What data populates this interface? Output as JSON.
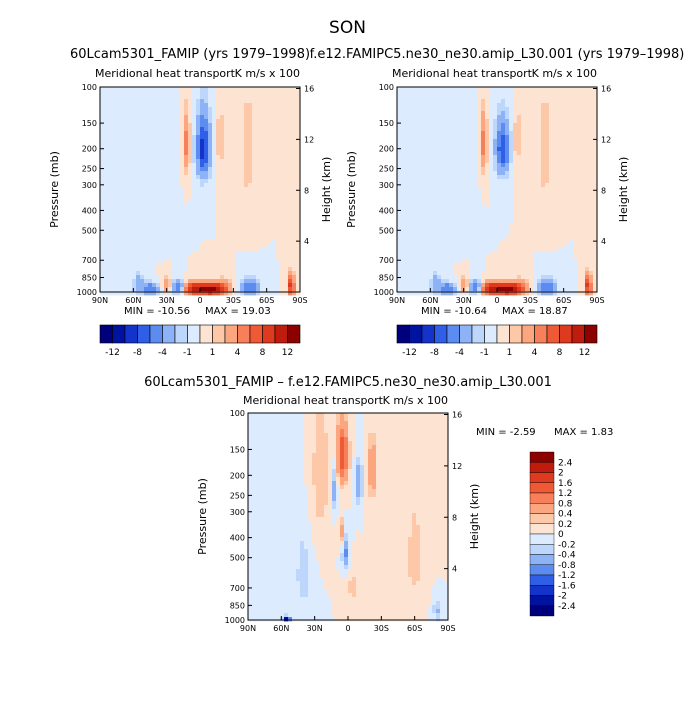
{
  "page": {
    "title": "SON"
  },
  "colors": {
    "neg": [
      "#00007d",
      "#0012a0",
      "#1433ca",
      "#2e5fe6",
      "#5c8cf0",
      "#8eb2f6",
      "#bdd6fb",
      "#dcebfd"
    ],
    "pos": [
      "#fde4d2",
      "#fcc8a8",
      "#fba67f",
      "#f7805a",
      "#ef5a36",
      "#de3a1f",
      "#c01c0e",
      "#8c0000"
    ]
  },
  "chart_data": [
    {
      "type": "heatmap",
      "id": "p1",
      "header": "60Lcam5301_FAMIP (yrs 1979–1998)",
      "title": "Meridional heat transport",
      "units": "K m/s x 100",
      "ylabel": "Pressure (mb)",
      "y2label": "Height (km)",
      "x_ticks": [
        "90N",
        "60N",
        "30N",
        "0",
        "30S",
        "60S",
        "90S"
      ],
      "y_ticks": [
        100,
        150,
        200,
        250,
        300,
        400,
        500,
        700,
        850,
        1000
      ],
      "y2_ticks": [
        16,
        12,
        8,
        4
      ],
      "min_label": "MIN = -10.56",
      "max_label": "MAX = 19.03",
      "ylim": [
        1000,
        100
      ],
      "x_range": [
        90,
        -90
      ],
      "features": [
        {
          "lat": 45,
          "p": 960,
          "v": -6,
          "w": 8,
          "h": 60
        },
        {
          "lat": 55,
          "p": 900,
          "v": -3,
          "w": 5,
          "h": 90
        },
        {
          "lat": 30,
          "p": 920,
          "v": 4,
          "w": 4,
          "h": 70
        },
        {
          "lat": 18,
          "p": 950,
          "v": -7,
          "w": 7,
          "h": 70
        },
        {
          "lat": 8,
          "p": 960,
          "v": 10,
          "w": 9,
          "h": 70
        },
        {
          "lat": -8,
          "p": 965,
          "v": 14,
          "w": 10,
          "h": 60
        },
        {
          "lat": -20,
          "p": 950,
          "v": 6,
          "w": 8,
          "h": 80
        },
        {
          "lat": -45,
          "p": 940,
          "v": -6,
          "w": 8,
          "h": 80
        },
        {
          "lat": -82,
          "p": 930,
          "v": 10,
          "w": 3,
          "h": 110
        },
        {
          "lat": 12,
          "p": 190,
          "v": 5,
          "w": 3,
          "h": 60
        },
        {
          "lat": -3,
          "p": 200,
          "v": -9,
          "w": 6,
          "h": 70
        },
        {
          "lat": -18,
          "p": 180,
          "v": 2,
          "w": 3,
          "h": 70
        },
        {
          "lat": -43,
          "p": 210,
          "v": 2,
          "w": 5,
          "h": 120
        },
        {
          "lat": 33,
          "p": 240,
          "v": -1,
          "w": 8,
          "h": 160
        }
      ]
    },
    {
      "type": "heatmap",
      "id": "p2",
      "header": "f.e12.FAMIPC5.ne30_ne30.amip_L30.001 (yrs 1979–1998)",
      "title": "Meridional heat transport",
      "units": "K m/s x 100",
      "ylabel": "Pressure (mb)",
      "y2label": "Height (km)",
      "x_ticks": [
        "90N",
        "60N",
        "30N",
        "0",
        "30S",
        "60S",
        "90S"
      ],
      "y_ticks": [
        100,
        150,
        200,
        250,
        300,
        400,
        500,
        700,
        850,
        1000
      ],
      "y2_ticks": [
        16,
        12,
        8,
        4
      ],
      "min_label": "MIN = -10.64",
      "max_label": "MAX = 18.87",
      "ylim": [
        1000,
        100
      ],
      "x_range": [
        90,
        -90
      ],
      "features": [
        {
          "lat": 45,
          "p": 960,
          "v": -6,
          "w": 8,
          "h": 60
        },
        {
          "lat": 55,
          "p": 900,
          "v": -3,
          "w": 5,
          "h": 90
        },
        {
          "lat": 30,
          "p": 920,
          "v": 4,
          "w": 4,
          "h": 70
        },
        {
          "lat": 18,
          "p": 950,
          "v": -7,
          "w": 7,
          "h": 70
        },
        {
          "lat": 8,
          "p": 960,
          "v": 10,
          "w": 9,
          "h": 70
        },
        {
          "lat": -8,
          "p": 965,
          "v": 14,
          "w": 10,
          "h": 60
        },
        {
          "lat": -20,
          "p": 950,
          "v": 6,
          "w": 8,
          "h": 80
        },
        {
          "lat": -45,
          "p": 940,
          "v": -6,
          "w": 8,
          "h": 80
        },
        {
          "lat": -82,
          "p": 930,
          "v": 10,
          "w": 3,
          "h": 110
        },
        {
          "lat": 12,
          "p": 190,
          "v": 5,
          "w": 3,
          "h": 60
        },
        {
          "lat": -5,
          "p": 200,
          "v": -8,
          "w": 6,
          "h": 60
        },
        {
          "lat": -18,
          "p": 180,
          "v": 2,
          "w": 3,
          "h": 70
        },
        {
          "lat": -43,
          "p": 210,
          "v": 2,
          "w": 5,
          "h": 120
        },
        {
          "lat": 33,
          "p": 240,
          "v": -1,
          "w": 8,
          "h": 160
        }
      ]
    },
    {
      "type": "heatmap",
      "id": "p3",
      "header": "60Lcam5301_FAMIP – f.e12.FAMIPC5.ne30_ne30.amip_L30.001",
      "title": "Meridional heat transport",
      "units": "K m/s x 100",
      "ylabel": "Pressure (mb)",
      "y2label": "Height (km)",
      "x_ticks": [
        "90N",
        "60N",
        "30N",
        "0",
        "30S",
        "60S",
        "90S"
      ],
      "y_ticks": [
        100,
        150,
        200,
        250,
        300,
        400,
        500,
        700,
        850,
        1000
      ],
      "y2_ticks": [
        16,
        12,
        8,
        4
      ],
      "min_label": "MIN =  -2.59",
      "max_label": "MAX =   1.83",
      "ylim": [
        1000,
        100
      ],
      "x_range": [
        90,
        -90
      ],
      "features": [
        {
          "lat": 5,
          "p": 160,
          "v": 1.6,
          "w": 5,
          "h": 50
        },
        {
          "lat": 12,
          "p": 230,
          "v": -0.6,
          "w": 3,
          "h": 70
        },
        {
          "lat": -10,
          "p": 220,
          "v": -0.8,
          "w": 3,
          "h": 50
        },
        {
          "lat": -22,
          "p": 190,
          "v": 0.8,
          "w": 4,
          "h": 60
        },
        {
          "lat": 2,
          "p": 480,
          "v": -0.9,
          "w": 3,
          "h": 80
        },
        {
          "lat": 6,
          "p": 380,
          "v": 0.6,
          "w": 2,
          "h": 60
        },
        {
          "lat": 55,
          "p": 990,
          "v": -2.2,
          "w": 3,
          "h": 30
        },
        {
          "lat": 40,
          "p": 600,
          "v": -0.3,
          "w": 8,
          "h": 300
        },
        {
          "lat": -60,
          "p": 500,
          "v": 0.3,
          "w": 8,
          "h": 300
        },
        {
          "lat": -80,
          "p": 900,
          "v": -0.5,
          "w": 3,
          "h": 100
        },
        {
          "lat": 25,
          "p": 200,
          "v": 0.3,
          "w": 10,
          "h": 200
        },
        {
          "lat": -5,
          "p": 700,
          "v": 0.3,
          "w": 6,
          "h": 120
        }
      ]
    }
  ],
  "colorbars": [
    {
      "id": "cb1",
      "labels": [
        "-12",
        "-8",
        "-4",
        "-1",
        "1",
        "4",
        "8",
        "12"
      ],
      "levels": [
        -12,
        -10,
        -8,
        -6,
        -4,
        -2,
        -1,
        -0.5,
        0.5,
        1,
        2,
        4,
        6,
        8,
        10,
        12
      ]
    },
    {
      "id": "cb2",
      "labels": [
        "-12",
        "-8",
        "-4",
        "-1",
        "1",
        "4",
        "8",
        "12"
      ],
      "levels": [
        -12,
        -10,
        -8,
        -6,
        -4,
        -2,
        -1,
        -0.5,
        0.5,
        1,
        2,
        4,
        6,
        8,
        10,
        12
      ]
    },
    {
      "id": "cb3",
      "labels": [
        "2.4",
        "2",
        "1.6",
        "1.2",
        "0.8",
        "0.4",
        "0.2",
        "0",
        "-0.2",
        "-0.4",
        "-0.8",
        "-1.2",
        "-1.6",
        "-2",
        "-2.4"
      ],
      "levels": [
        -2.4,
        -2,
        -1.6,
        -1.2,
        -0.8,
        -0.4,
        -0.2,
        0,
        0.2,
        0.4,
        0.8,
        1.2,
        1.6,
        2,
        2.4
      ]
    }
  ]
}
